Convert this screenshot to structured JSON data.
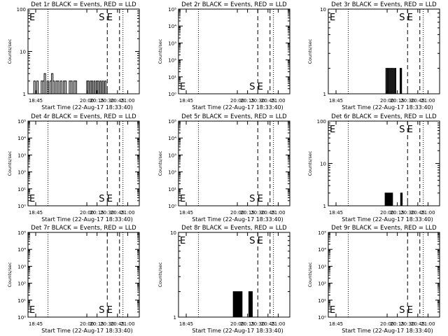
{
  "chart_data": [
    {
      "type": "line",
      "title": "Det 1r BLACK = Events, RED = LLD",
      "ylabel": "Counts/sec",
      "xlabel": "Start Time (22-Aug-17 18:33:40)",
      "scale": "log",
      "ylim": [
        1,
        100
      ],
      "yticks": [
        "1",
        "10",
        "100"
      ],
      "x_ticks": [
        "18:45",
        "20:00",
        "20:15",
        "20:30",
        "20:45",
        "21:00"
      ],
      "markers": [
        {
          "label": "E",
          "t": "18:33"
        },
        {
          "label": "S",
          "t": "20:30"
        },
        {
          "label": "E",
          "t": "20:48"
        }
      ],
      "series": [
        {
          "color": "#000000",
          "segments": [
            {
              "from": "18:40",
              "to": "19:45",
              "values": [
                1,
                2,
                1,
                2,
                1,
                1,
                2,
                2,
                3,
                1,
                2,
                1,
                2,
                3,
                2,
                1,
                2,
                2,
                1,
                2,
                1,
                2,
                2,
                1,
                1,
                2,
                2,
                1,
                2,
                2
              ]
            },
            {
              "from": "19:58",
              "to": "20:28",
              "values": [
                1,
                2,
                2,
                1,
                2,
                2,
                1,
                2,
                1,
                2,
                2,
                1,
                2,
                1,
                2,
                1,
                2
              ]
            }
          ]
        }
      ]
    },
    {
      "type": "line",
      "title": "Det 2r BLACK = Events, RED = LLD",
      "ylabel": "Counts/sec",
      "xlabel": "Start Time (22-Aug-17 18:33:40)",
      "scale": "log",
      "ylim": [
        1,
        100000
      ],
      "yticks": [
        "10⁰",
        "10¹",
        "10²",
        "10³",
        "10⁴",
        "10⁵"
      ],
      "x_ticks": [
        "18:45",
        "20:00",
        "20:15",
        "20:30",
        "20:45",
        "21:00"
      ],
      "markers": [
        {
          "label": "E",
          "t": "18:33"
        },
        {
          "label": "S",
          "t": "20:30"
        },
        {
          "label": "E",
          "t": "20:48"
        }
      ],
      "series": []
    },
    {
      "type": "line",
      "title": "Det 3r BLACK = Events, RED = LLD",
      "ylabel": "Counts/sec",
      "xlabel": "Start Time (22-Aug-17 18:33:40)",
      "scale": "log",
      "ylim": [
        1,
        10
      ],
      "yticks": [
        "1",
        "10"
      ],
      "x_ticks": [
        "18:45",
        "20:00",
        "20:15",
        "20:30",
        "20:45",
        "21:00"
      ],
      "markers": [
        {
          "label": "E",
          "t": "18:33"
        },
        {
          "label": "S",
          "t": "20:30"
        },
        {
          "label": "E",
          "t": "20:48"
        }
      ],
      "series": [
        {
          "color": "#000000",
          "segments": [
            {
              "from": "19:57",
              "to": "20:14",
              "values": [
                1,
                2,
                1,
                2,
                2,
                2,
                1,
                2,
                2,
                2,
                1,
                2,
                1,
                2,
                1
              ]
            },
            {
              "from": "20:19",
              "to": "20:22",
              "values": [
                2,
                1,
                2,
                1
              ]
            }
          ]
        }
      ]
    },
    {
      "type": "line",
      "title": "Det 4r BLACK = Events, RED = LLD",
      "ylabel": "Counts/sec",
      "xlabel": "Start Time (22-Aug-17 18:33:40)",
      "scale": "log",
      "ylim": [
        1,
        100000
      ],
      "yticks": [
        "10⁰",
        "10¹",
        "10²",
        "10³",
        "10⁴",
        "10⁵"
      ],
      "x_ticks": [
        "18:45",
        "20:00",
        "20:15",
        "20:30",
        "20:45",
        "21:00"
      ],
      "markers": [
        {
          "label": "E",
          "t": "18:33"
        },
        {
          "label": "S",
          "t": "20:30"
        },
        {
          "label": "E",
          "t": "20:48"
        }
      ],
      "series": []
    },
    {
      "type": "line",
      "title": "Det 5r BLACK = Events, RED = LLD",
      "ylabel": "Counts/sec",
      "xlabel": "Start Time (22-Aug-17 18:33:40)",
      "scale": "log",
      "ylim": [
        1,
        100000
      ],
      "yticks": [
        "10⁰",
        "10¹",
        "10²",
        "10³",
        "10⁴",
        "10⁵"
      ],
      "x_ticks": [
        "18:45",
        "20:00",
        "20:15",
        "20:30",
        "20:45",
        "21:00"
      ],
      "markers": [
        {
          "label": "E",
          "t": "18:33"
        },
        {
          "label": "S",
          "t": "20:30"
        },
        {
          "label": "E",
          "t": "20:48"
        }
      ],
      "series": []
    },
    {
      "type": "line",
      "title": "Det 6r BLACK = Events, RED = LLD",
      "ylabel": "Counts/sec",
      "xlabel": "Start Time (22-Aug-17 18:33:40)",
      "scale": "log",
      "ylim": [
        1,
        100
      ],
      "yticks": [
        "1",
        "10",
        "100"
      ],
      "x_ticks": [
        "18:45",
        "20:00",
        "20:15",
        "20:30",
        "20:45",
        "21:00"
      ],
      "markers": [
        {
          "label": "E",
          "t": "18:33"
        },
        {
          "label": "S",
          "t": "20:30"
        },
        {
          "label": "E",
          "t": "20:48"
        }
      ],
      "series": [
        {
          "color": "#000000",
          "segments": [
            {
              "from": "19:56",
              "to": "20:08",
              "values": [
                1,
                2,
                1,
                2,
                1,
                2,
                2,
                1,
                2,
                2,
                1,
                2
              ]
            },
            {
              "from": "20:19",
              "to": "20:23",
              "values": [
                1,
                2,
                1,
                2,
                1
              ]
            }
          ]
        }
      ]
    },
    {
      "type": "line",
      "title": "Det 7r BLACK = Events, RED = LLD",
      "ylabel": "Counts/sec",
      "xlabel": "Start Time (22-Aug-17 18:33:40)",
      "scale": "log",
      "ylim": [
        1,
        100000
      ],
      "yticks": [
        "10⁰",
        "10¹",
        "10²",
        "10³",
        "10⁴",
        "10⁵"
      ],
      "x_ticks": [
        "18:45",
        "20:00",
        "20:15",
        "20:30",
        "20:45",
        "21:00"
      ],
      "markers": [
        {
          "label": "E",
          "t": "18:33"
        },
        {
          "label": "S",
          "t": "20:30"
        },
        {
          "label": "E",
          "t": "20:48"
        }
      ],
      "series": []
    },
    {
      "type": "line",
      "title": "Det 8r BLACK = Events, RED = LLD",
      "ylabel": "Counts/sec",
      "xlabel": "Start Time (22-Aug-17 18:33:40)",
      "scale": "log",
      "ylim": [
        1,
        10
      ],
      "yticks": [
        "1",
        "10"
      ],
      "x_ticks": [
        "18:45",
        "20:00",
        "20:15",
        "20:30",
        "20:45",
        "21:00"
      ],
      "markers": [
        {
          "label": "E",
          "t": "18:33"
        },
        {
          "label": "S",
          "t": "20:30"
        },
        {
          "label": "E",
          "t": "20:48"
        }
      ],
      "series": [
        {
          "color": "#000000",
          "segments": [
            {
              "from": "19:53",
              "to": "20:07",
              "values": [
                1,
                2,
                2,
                1,
                2,
                2,
                1,
                2,
                2,
                1,
                2,
                1,
                2,
                2
              ]
            },
            {
              "from": "20:16",
              "to": "20:22",
              "values": [
                1,
                2,
                1,
                2,
                2,
                1,
                2
              ]
            }
          ]
        }
      ]
    },
    {
      "type": "line",
      "title": "Det 9r BLACK = Events, RED = LLD",
      "ylabel": "Counts/sec",
      "xlabel": "Start Time (22-Aug-17 18:33:40)",
      "scale": "log",
      "ylim": [
        1,
        100000
      ],
      "yticks": [
        "10⁰",
        "10¹",
        "10²",
        "10³",
        "10⁴",
        "10⁵"
      ],
      "x_ticks": [
        "18:45",
        "20:00",
        "20:15",
        "20:30",
        "20:45",
        "21:00"
      ],
      "markers": [
        {
          "label": "E",
          "t": "18:33"
        },
        {
          "label": "S",
          "t": "20:30"
        },
        {
          "label": "E",
          "t": "20:48"
        }
      ],
      "series": []
    }
  ]
}
